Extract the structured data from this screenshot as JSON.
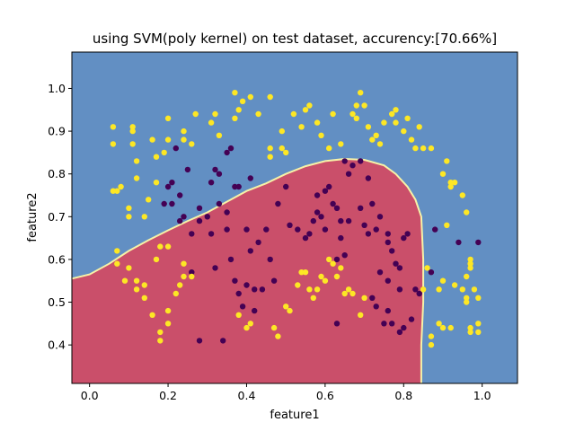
{
  "chart_data": {
    "type": "scatter",
    "title": "using SVM(poly kernel) on test dataset, accurency:[70.66%]",
    "xlabel": "feature1",
    "ylabel": "feature2",
    "xlim": [
      -0.045,
      1.09
    ],
    "ylim": [
      0.31,
      1.085
    ],
    "x_ticks": [
      {
        "value": 0.0,
        "label": "0.0"
      },
      {
        "value": 0.2,
        "label": "0.2"
      },
      {
        "value": 0.4,
        "label": "0.4"
      },
      {
        "value": 0.6,
        "label": "0.6"
      },
      {
        "value": 0.8,
        "label": "0.8"
      },
      {
        "value": 1.0,
        "label": "1.0"
      }
    ],
    "y_ticks": [
      {
        "value": 0.4,
        "label": "0.4"
      },
      {
        "value": 0.5,
        "label": "0.5"
      },
      {
        "value": 0.6,
        "label": "0.6"
      },
      {
        "value": 0.7,
        "label": "0.7"
      },
      {
        "value": 0.8,
        "label": "0.8"
      },
      {
        "value": 0.9,
        "label": "0.9"
      },
      {
        "value": 1.0,
        "label": "1.0"
      }
    ],
    "grid": false,
    "legend": "none",
    "colors": {
      "region_class_0": "#ca4f6a",
      "region_class_1": "#628fc3",
      "boundary": "#f6f2a8",
      "class_0_points": "#440154",
      "class_1_points": "#fde725"
    },
    "decision_boundary": [
      [
        -0.045,
        0.555
      ],
      [
        0.0,
        0.565
      ],
      [
        0.05,
        0.59
      ],
      [
        0.1,
        0.62
      ],
      [
        0.15,
        0.645
      ],
      [
        0.2,
        0.668
      ],
      [
        0.25,
        0.69
      ],
      [
        0.3,
        0.71
      ],
      [
        0.35,
        0.735
      ],
      [
        0.4,
        0.76
      ],
      [
        0.45,
        0.778
      ],
      [
        0.5,
        0.8
      ],
      [
        0.55,
        0.818
      ],
      [
        0.6,
        0.83
      ],
      [
        0.65,
        0.835
      ],
      [
        0.7,
        0.833
      ],
      [
        0.75,
        0.82
      ],
      [
        0.78,
        0.8
      ],
      [
        0.81,
        0.77
      ],
      [
        0.83,
        0.74
      ],
      [
        0.845,
        0.7
      ],
      [
        0.85,
        0.6
      ],
      [
        0.85,
        0.5
      ],
      [
        0.845,
        0.4
      ],
      [
        0.845,
        0.31
      ]
    ],
    "series": [
      {
        "class": 0,
        "points": [
          [
            0.28,
            0.41
          ],
          [
            0.34,
            0.41
          ],
          [
            0.37,
            0.55
          ],
          [
            0.38,
            0.52
          ],
          [
            0.36,
            0.6
          ],
          [
            0.4,
            0.54
          ],
          [
            0.32,
            0.58
          ],
          [
            0.31,
            0.66
          ],
          [
            0.3,
            0.7
          ],
          [
            0.28,
            0.72
          ],
          [
            0.33,
            0.73
          ],
          [
            0.35,
            0.71
          ],
          [
            0.35,
            0.67
          ],
          [
            0.28,
            0.69
          ],
          [
            0.26,
            0.66
          ],
          [
            0.23,
            0.69
          ],
          [
            0.24,
            0.7
          ],
          [
            0.21,
            0.73
          ],
          [
            0.23,
            0.75
          ],
          [
            0.21,
            0.78
          ],
          [
            0.2,
            0.77
          ],
          [
            0.31,
            0.78
          ],
          [
            0.33,
            0.8
          ],
          [
            0.37,
            0.77
          ],
          [
            0.38,
            0.77
          ],
          [
            0.41,
            0.79
          ],
          [
            0.25,
            0.81
          ],
          [
            0.32,
            0.81
          ],
          [
            0.35,
            0.85
          ],
          [
            0.36,
            0.86
          ],
          [
            0.22,
            0.86
          ],
          [
            0.19,
            0.73
          ],
          [
            0.43,
            0.64
          ],
          [
            0.45,
            0.67
          ],
          [
            0.46,
            0.6
          ],
          [
            0.47,
            0.55
          ],
          [
            0.42,
            0.53
          ],
          [
            0.44,
            0.53
          ],
          [
            0.41,
            0.62
          ],
          [
            0.4,
            0.67
          ],
          [
            0.48,
            0.73
          ],
          [
            0.5,
            0.77
          ],
          [
            0.51,
            0.68
          ],
          [
            0.53,
            0.67
          ],
          [
            0.55,
            0.65
          ],
          [
            0.56,
            0.66
          ],
          [
            0.57,
            0.69
          ],
          [
            0.58,
            0.71
          ],
          [
            0.59,
            0.7
          ],
          [
            0.6,
            0.67
          ],
          [
            0.58,
            0.75
          ],
          [
            0.6,
            0.76
          ],
          [
            0.61,
            0.77
          ],
          [
            0.62,
            0.73
          ],
          [
            0.63,
            0.72
          ],
          [
            0.64,
            0.69
          ],
          [
            0.66,
            0.69
          ],
          [
            0.64,
            0.65
          ],
          [
            0.65,
            0.61
          ],
          [
            0.63,
            0.6
          ],
          [
            0.66,
            0.8
          ],
          [
            0.67,
            0.82
          ],
          [
            0.69,
            0.83
          ],
          [
            0.71,
            0.79
          ],
          [
            0.72,
            0.73
          ],
          [
            0.69,
            0.72
          ],
          [
            0.7,
            0.68
          ],
          [
            0.71,
            0.66
          ],
          [
            0.73,
            0.67
          ],
          [
            0.74,
            0.7
          ],
          [
            0.76,
            0.64
          ],
          [
            0.77,
            0.62
          ],
          [
            0.78,
            0.59
          ],
          [
            0.79,
            0.58
          ],
          [
            0.76,
            0.55
          ],
          [
            0.74,
            0.57
          ],
          [
            0.72,
            0.51
          ],
          [
            0.73,
            0.49
          ],
          [
            0.75,
            0.45
          ],
          [
            0.77,
            0.45
          ],
          [
            0.76,
            0.48
          ],
          [
            0.79,
            0.43
          ],
          [
            0.8,
            0.44
          ],
          [
            0.82,
            0.46
          ],
          [
            0.83,
            0.53
          ],
          [
            0.79,
            0.53
          ],
          [
            0.8,
            0.65
          ],
          [
            0.81,
            0.66
          ],
          [
            0.87,
            0.57
          ],
          [
            0.88,
            0.67
          ],
          [
            0.94,
            0.64
          ],
          [
            0.99,
            0.64
          ],
          [
            0.63,
            0.45
          ],
          [
            0.65,
            0.83
          ],
          [
            0.76,
            0.66
          ],
          [
            0.84,
            0.52
          ],
          [
            0.42,
            0.48
          ],
          [
            0.39,
            0.49
          ],
          [
            0.26,
            0.57
          ]
        ]
      },
      {
        "class": 1,
        "points": [
          [
            0.06,
            0.76
          ],
          [
            0.07,
            0.76
          ],
          [
            0.08,
            0.77
          ],
          [
            0.1,
            0.72
          ],
          [
            0.1,
            0.7
          ],
          [
            0.14,
            0.7
          ],
          [
            0.12,
            0.79
          ],
          [
            0.17,
            0.78
          ],
          [
            0.15,
            0.74
          ],
          [
            0.07,
            0.62
          ],
          [
            0.07,
            0.59
          ],
          [
            0.1,
            0.58
          ],
          [
            0.09,
            0.55
          ],
          [
            0.12,
            0.55
          ],
          [
            0.12,
            0.53
          ],
          [
            0.14,
            0.54
          ],
          [
            0.14,
            0.51
          ],
          [
            0.16,
            0.47
          ],
          [
            0.18,
            0.43
          ],
          [
            0.18,
            0.41
          ],
          [
            0.2,
            0.45
          ],
          [
            0.2,
            0.48
          ],
          [
            0.22,
            0.52
          ],
          [
            0.23,
            0.54
          ],
          [
            0.24,
            0.56
          ],
          [
            0.24,
            0.59
          ],
          [
            0.26,
            0.56
          ],
          [
            0.2,
            0.63
          ],
          [
            0.18,
            0.63
          ],
          [
            0.17,
            0.6
          ],
          [
            0.06,
            0.87
          ],
          [
            0.06,
            0.91
          ],
          [
            0.11,
            0.9
          ],
          [
            0.11,
            0.91
          ],
          [
            0.11,
            0.87
          ],
          [
            0.12,
            0.83
          ],
          [
            0.16,
            0.88
          ],
          [
            0.17,
            0.84
          ],
          [
            0.19,
            0.85
          ],
          [
            0.2,
            0.88
          ],
          [
            0.2,
            0.93
          ],
          [
            0.24,
            0.88
          ],
          [
            0.24,
            0.9
          ],
          [
            0.26,
            0.87
          ],
          [
            0.27,
            0.94
          ],
          [
            0.31,
            0.92
          ],
          [
            0.32,
            0.94
          ],
          [
            0.33,
            0.89
          ],
          [
            0.37,
            0.93
          ],
          [
            0.38,
            0.95
          ],
          [
            0.37,
            0.99
          ],
          [
            0.39,
            0.97
          ],
          [
            0.41,
            0.98
          ],
          [
            0.43,
            0.94
          ],
          [
            0.46,
            0.98
          ],
          [
            0.46,
            0.86
          ],
          [
            0.46,
            0.84
          ],
          [
            0.49,
            0.86
          ],
          [
            0.5,
            0.85
          ],
          [
            0.49,
            0.9
          ],
          [
            0.52,
            0.94
          ],
          [
            0.54,
            0.91
          ],
          [
            0.55,
            0.95
          ],
          [
            0.56,
            0.96
          ],
          [
            0.58,
            0.92
          ],
          [
            0.59,
            0.89
          ],
          [
            0.61,
            0.86
          ],
          [
            0.62,
            0.94
          ],
          [
            0.64,
            0.87
          ],
          [
            0.67,
            0.94
          ],
          [
            0.68,
            0.93
          ],
          [
            0.68,
            0.96
          ],
          [
            0.69,
            0.99
          ],
          [
            0.7,
            0.96
          ],
          [
            0.71,
            0.91
          ],
          [
            0.72,
            0.88
          ],
          [
            0.73,
            0.89
          ],
          [
            0.74,
            0.87
          ],
          [
            0.75,
            0.92
          ],
          [
            0.77,
            0.94
          ],
          [
            0.78,
            0.95
          ],
          [
            0.78,
            0.92
          ],
          [
            0.81,
            0.93
          ],
          [
            0.8,
            0.9
          ],
          [
            0.82,
            0.88
          ],
          [
            0.83,
            0.86
          ],
          [
            0.84,
            0.91
          ],
          [
            0.85,
            0.86
          ],
          [
            0.87,
            0.86
          ],
          [
            0.9,
            0.8
          ],
          [
            0.91,
            0.83
          ],
          [
            0.92,
            0.78
          ],
          [
            0.92,
            0.77
          ],
          [
            0.93,
            0.78
          ],
          [
            0.95,
            0.75
          ],
          [
            0.91,
            0.68
          ],
          [
            0.96,
            0.71
          ],
          [
            0.9,
            0.55
          ],
          [
            0.93,
            0.54
          ],
          [
            0.95,
            0.53
          ],
          [
            0.96,
            0.56
          ],
          [
            0.97,
            0.58
          ],
          [
            0.97,
            0.59
          ],
          [
            0.97,
            0.6
          ],
          [
            0.98,
            0.53
          ],
          [
            0.99,
            0.51
          ],
          [
            0.92,
            0.44
          ],
          [
            0.89,
            0.45
          ],
          [
            0.87,
            0.4
          ],
          [
            0.87,
            0.42
          ],
          [
            0.9,
            0.44
          ],
          [
            0.97,
            0.43
          ],
          [
            0.97,
            0.44
          ],
          [
            0.99,
            0.43
          ],
          [
            0.99,
            0.45
          ],
          [
            0.96,
            0.5
          ],
          [
            0.96,
            0.51
          ],
          [
            0.85,
            0.53
          ],
          [
            0.86,
            0.58
          ],
          [
            0.89,
            0.53
          ],
          [
            0.53,
            0.54
          ],
          [
            0.54,
            0.57
          ],
          [
            0.55,
            0.57
          ],
          [
            0.56,
            0.53
          ],
          [
            0.57,
            0.51
          ],
          [
            0.58,
            0.53
          ],
          [
            0.59,
            0.56
          ],
          [
            0.6,
            0.55
          ],
          [
            0.61,
            0.6
          ],
          [
            0.62,
            0.59
          ],
          [
            0.63,
            0.56
          ],
          [
            0.64,
            0.58
          ],
          [
            0.65,
            0.52
          ],
          [
            0.66,
            0.53
          ],
          [
            0.67,
            0.52
          ],
          [
            0.7,
            0.51
          ],
          [
            0.69,
            0.47
          ],
          [
            0.5,
            0.49
          ],
          [
            0.51,
            0.48
          ],
          [
            0.48,
            0.42
          ],
          [
            0.47,
            0.44
          ],
          [
            0.4,
            0.44
          ],
          [
            0.41,
            0.45
          ],
          [
            0.38,
            0.47
          ]
        ]
      }
    ]
  }
}
